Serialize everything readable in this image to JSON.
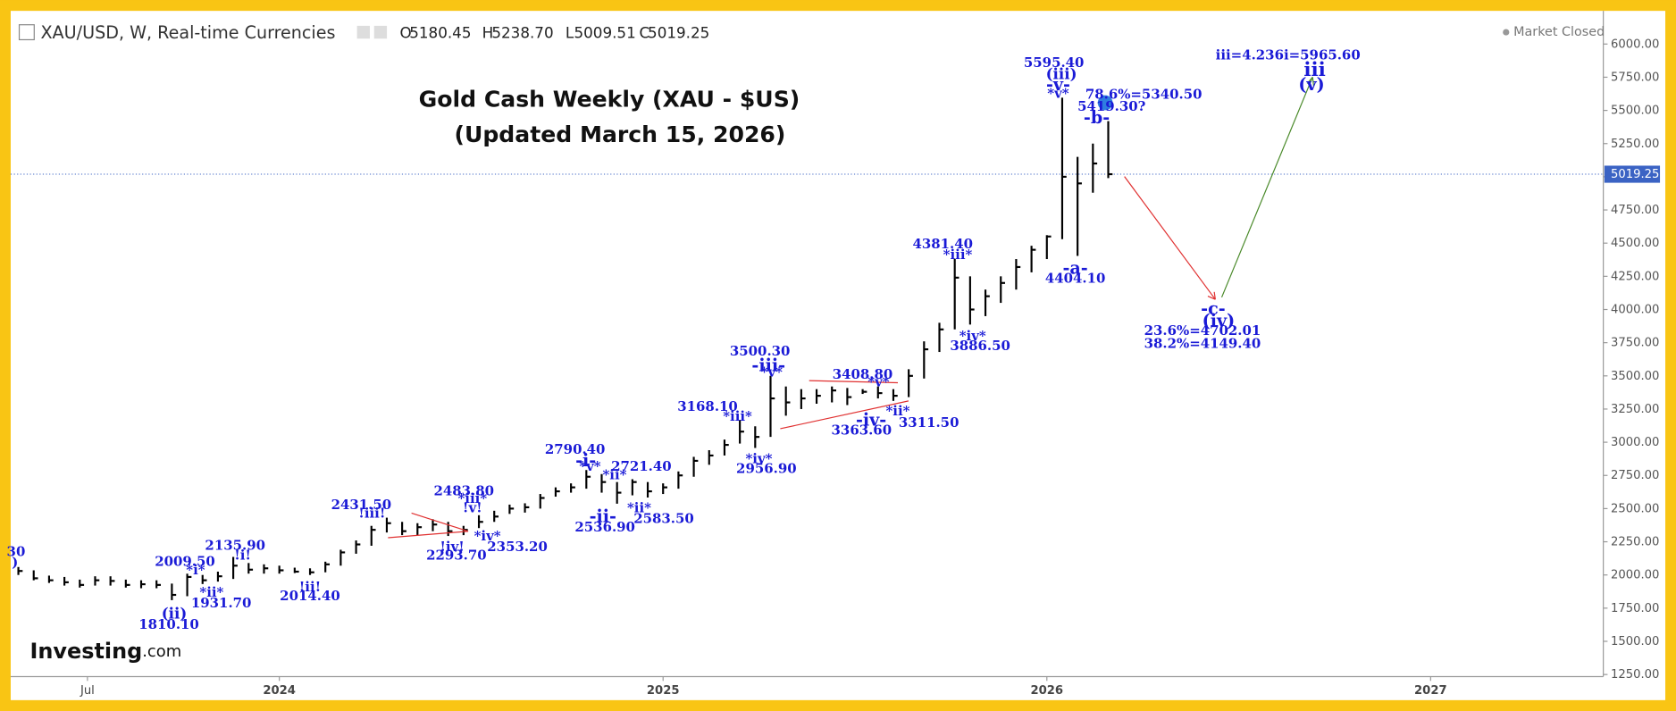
{
  "header": {
    "symbol": "XAU/USD, W, Real-time Currencies",
    "ohlc": [
      {
        "key": "O",
        "value": "5180.45"
      },
      {
        "key": "H",
        "value": "5238.70"
      },
      {
        "key": "L",
        "value": "5009.51"
      },
      {
        "key": "C",
        "value": "5019.25"
      }
    ],
    "status": "Market Closed"
  },
  "logo": [
    "Investing",
    ".com"
  ],
  "chart_data": {
    "type": "ohlc",
    "title": "Gold Cash Weekly (XAU - $US)",
    "subtitle": "(Updated March 15, 2026)",
    "color": "#000000",
    "x": [
      2023.32,
      2023.36,
      2023.4,
      2023.44,
      2023.48,
      2023.52,
      2023.56,
      2023.6,
      2023.64,
      2023.68,
      2023.72,
      2023.76,
      2023.8,
      2023.84,
      2023.88,
      2023.92,
      2023.96,
      2024.0,
      2024.04,
      2024.08,
      2024.12,
      2024.16,
      2024.2,
      2024.24,
      2024.28,
      2024.32,
      2024.36,
      2024.4,
      2024.44,
      2024.48,
      2024.52,
      2024.56,
      2024.6,
      2024.64,
      2024.68,
      2024.72,
      2024.76,
      2024.8,
      2024.84,
      2024.88,
      2024.92,
      2024.96,
      2025.0,
      2025.04,
      2025.08,
      2025.12,
      2025.16,
      2025.2,
      2025.24,
      2025.28,
      2025.32,
      2025.36,
      2025.4,
      2025.44,
      2025.48,
      2025.52,
      2025.56,
      2025.6,
      2025.64,
      2025.68,
      2025.72,
      2025.76,
      2025.8,
      2025.84,
      2025.88,
      2025.92,
      2025.96,
      2026.0,
      2026.04,
      2026.08,
      2026.12,
      2026.16
    ],
    "high": [
      2060,
      2035,
      1995,
      1985,
      1965,
      1990,
      1990,
      1965,
      1960,
      1960,
      1935,
      2009.5,
      2000,
      2025,
      2135.9,
      2090,
      2080,
      2070,
      2055,
      2050,
      2100,
      2190,
      2260,
      2370,
      2431.5,
      2400,
      2390,
      2420,
      2400,
      2370,
      2450,
      2483.8,
      2530,
      2540,
      2610,
      2660,
      2690,
      2790.4,
      2760,
      2700,
      2721.4,
      2700,
      2690,
      2780,
      2890,
      2940,
      3020,
      3168.1,
      3120,
      3500.3,
      3420,
      3400,
      3400,
      3420,
      3408.8,
      3400,
      3420,
      3400,
      3550,
      3760,
      3900,
      4381.4,
      4250,
      4150,
      4250,
      4380,
      4480,
      4560,
      5595.4,
      5150,
      5250,
      5419.3
    ],
    "low": [
      2000,
      1960,
      1940,
      1920,
      1905,
      1920,
      1920,
      1905,
      1900,
      1900,
      1810.1,
      1840,
      1931.7,
      1950,
      1970,
      2010,
      2010,
      2010,
      2014.4,
      2000,
      2020,
      2070,
      2160,
      2220,
      2320,
      2300,
      2300,
      2330,
      2293.7,
      2300,
      2353.2,
      2400,
      2460,
      2470,
      2500,
      2590,
      2620,
      2650,
      2620,
      2536.9,
      2600,
      2583.5,
      2610,
      2650,
      2740,
      2830,
      2900,
      2990,
      2956.9,
      3040,
      3200,
      3250,
      3290,
      3300,
      3280,
      3363.6,
      3330,
      3311.5,
      3340,
      3480,
      3680,
      3850,
      3886.5,
      3950,
      4050,
      4150,
      4280,
      4380,
      4530,
      4404.1,
      4880,
      4990
    ],
    "close": [
      2030,
      1975,
      1960,
      1945,
      1925,
      1960,
      1955,
      1925,
      1930,
      1925,
      1850,
      1985,
      1960,
      1990,
      2070,
      2040,
      2050,
      2035,
      2025,
      2020,
      2080,
      2170,
      2230,
      2340,
      2390,
      2330,
      2360,
      2380,
      2330,
      2340,
      2400,
      2440,
      2500,
      2510,
      2580,
      2630,
      2660,
      2740,
      2700,
      2620,
      2700,
      2630,
      2660,
      2750,
      2860,
      2900,
      2980,
      3080,
      3040,
      3330,
      3300,
      3330,
      3350,
      3390,
      3340,
      3380,
      3370,
      3350,
      3500,
      3700,
      3850,
      4240,
      4000,
      4100,
      4200,
      4320,
      4450,
      4550,
      5000,
      4950,
      5100,
      5019.25
    ],
    "last_price": 5019.25,
    "last_price_color": "#3b63c4",
    "xlim": [
      2023.3,
      2027.45
    ],
    "xticks": [
      {
        "value": 2023.5,
        "label": "Jul"
      },
      2024,
      2025,
      2026,
      2027
    ],
    "ylim": [
      1234,
      6250
    ],
    "yticks": [
      {
        "value": 1250,
        "label": "1250.00"
      },
      {
        "value": 1500,
        "label": "1500.00"
      },
      {
        "value": 1750,
        "label": "1750.00"
      },
      {
        "value": 2000,
        "label": "2000.00"
      },
      {
        "value": 2250,
        "label": "2250.00"
      },
      {
        "value": 2500,
        "label": "2500.00"
      },
      {
        "value": 2750,
        "label": "2750.00"
      },
      {
        "value": 3000,
        "label": "3000.00"
      },
      {
        "value": 3250,
        "label": "3250.00"
      },
      {
        "value": 3500,
        "label": "3500.00"
      },
      {
        "value": 3750,
        "label": "3750.00"
      },
      {
        "value": 4000,
        "label": "4000.00"
      },
      {
        "value": 4250,
        "label": "4250.00"
      },
      {
        "value": 4500,
        "label": "4500.00"
      },
      {
        "value": 4750,
        "label": "4750.00"
      },
      {
        "value": 5000,
        "label": "5000.00"
      },
      {
        "value": 5250,
        "label": "5250.00"
      },
      {
        "value": 5500,
        "label": "5500.00"
      },
      {
        "value": 5750,
        "label": "5750.00"
      },
      {
        "value": 6000,
        "label": "6000.00"
      }
    ],
    "annotation_color": "#1a1ad6",
    "annotations": [
      "30",
      ")",
      "2009.50",
      "*i*",
      "(ii)",
      "1810.10",
      "*ii*",
      "1931.70",
      "2135.90",
      "!i!",
      "!ii!",
      "2014.40",
      "2431.50",
      "!iii!",
      "2483.80",
      "*iii*",
      "!v!",
      "*iv*",
      "!iv!",
      "2293.70",
      "2353.20",
      "2790.40",
      "-i-",
      "*v*",
      "*ii*",
      "2721.40",
      "-ii-",
      "2536.90",
      "*ii*",
      "2583.50",
      "3168.10",
      "*iii*",
      "3500.30",
      "-iii-",
      "*v*",
      "*iv*",
      "2956.90",
      "3408.80",
      "*v*",
      "-iv-",
      "3363.60",
      "*ii*",
      "3311.50",
      "4381.40",
      "*iii*",
      "*iv*",
      "3886.50",
      "5595.40",
      "(iii)",
      "-v-",
      "*v*",
      "78.6%=5340.50",
      "5419.30?",
      "-b-",
      "-a-",
      "4404.10",
      "iii=4.236i=5965.60",
      "iii",
      "(v)",
      "-c-",
      "(iv)",
      "23.6%=4702.01",
      "38.2%=4149.40"
    ]
  }
}
